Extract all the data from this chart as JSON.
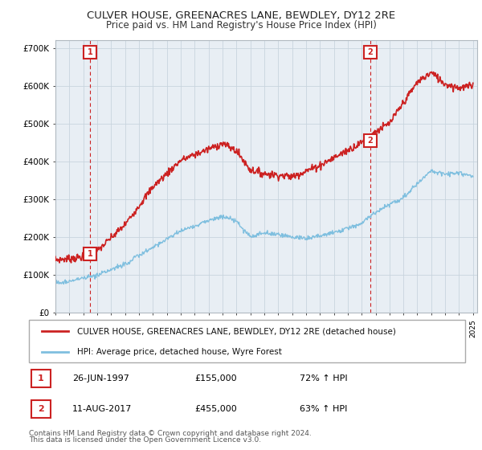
{
  "title1": "CULVER HOUSE, GREENACRES LANE, BEWDLEY, DY12 2RE",
  "title2": "Price paid vs. HM Land Registry's House Price Index (HPI)",
  "ylim": [
    0,
    720000
  ],
  "yticks": [
    0,
    100000,
    200000,
    300000,
    400000,
    500000,
    600000,
    700000
  ],
  "ytick_labels": [
    "£0",
    "£100K",
    "£200K",
    "£300K",
    "£400K",
    "£500K",
    "£600K",
    "£700K"
  ],
  "sale1_date": 1997.49,
  "sale1_price": 155000,
  "sale2_date": 2017.61,
  "sale2_price": 455000,
  "sale1_text": "26-JUN-1997",
  "sale1_amount": "£155,000",
  "sale1_hpi": "72% ↑ HPI",
  "sale2_text": "11-AUG-2017",
  "sale2_amount": "£455,000",
  "sale2_hpi": "63% ↑ HPI",
  "hpi_color": "#7fbfdf",
  "price_color": "#cc2222",
  "legend_label1": "CULVER HOUSE, GREENACRES LANE, BEWDLEY, DY12 2RE (detached house)",
  "legend_label2": "HPI: Average price, detached house, Wyre Forest",
  "footnote1": "Contains HM Land Registry data © Crown copyright and database right 2024.",
  "footnote2": "This data is licensed under the Open Government Licence v3.0.",
  "background": "#f0f4f8",
  "plot_bg": "#e8eef4",
  "grid_color": "#c8d4de"
}
